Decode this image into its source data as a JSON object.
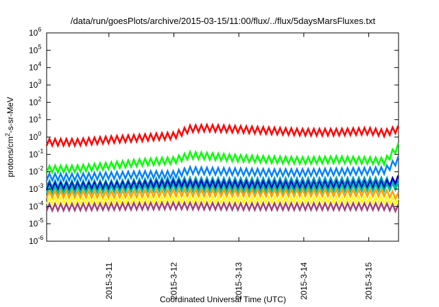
{
  "chart_data": {
    "type": "line",
    "title": "/data/run/goesPlots/archive/2015-03-15/11:00/flux/../flux/5daysMarsFluxes.txt",
    "xlabel": "Coordinated Universal Time (UTC)",
    "ylabel": {
      "prefix": "protons/cm",
      "sup": "2",
      "suffix": "-s-sr-MeV"
    },
    "y_scale": "log",
    "ylim": [
      1e-06,
      1000000.0
    ],
    "y_ticks": [
      {
        "value": 1000000.0,
        "base": "10",
        "exp": "6"
      },
      {
        "value": 100000.0,
        "base": "10",
        "exp": "5"
      },
      {
        "value": 10000.0,
        "base": "10",
        "exp": "4"
      },
      {
        "value": 1000.0,
        "base": "10",
        "exp": "3"
      },
      {
        "value": 100.0,
        "base": "10",
        "exp": "2"
      },
      {
        "value": 10.0,
        "base": "10",
        "exp": "1"
      },
      {
        "value": 1.0,
        "base": "10",
        "exp": "0"
      },
      {
        "value": 0.1,
        "base": "10",
        "exp": "-1"
      },
      {
        "value": 0.01,
        "base": "10",
        "exp": "-2"
      },
      {
        "value": 0.001,
        "base": "10",
        "exp": "-3"
      },
      {
        "value": 0.0001,
        "base": "10",
        "exp": "-4"
      },
      {
        "value": 1e-05,
        "base": "10",
        "exp": "-5"
      },
      {
        "value": 1e-06,
        "base": "10",
        "exp": "-6"
      }
    ],
    "x_scale": "time",
    "xlim": [
      "2015-03-10T01:00",
      "2015-03-15T11:00"
    ],
    "x_ticks": [
      "2015-3-11",
      "2015-3-12",
      "2015-3-13",
      "2015-3-14",
      "2015-3-15"
    ],
    "x_tick_dates": [
      "2015-03-11T00:00",
      "2015-03-12T00:00",
      "2015-03-13T00:00",
      "2015-03-14T00:00",
      "2015-03-15T00:00"
    ],
    "grid": false,
    "legend": "none",
    "series": [
      {
        "color": "#ff0000",
        "x": [
          "2015-03-10T01:00",
          "2015-03-10T12:00",
          "2015-03-11T00:00",
          "2015-03-11T12:00",
          "2015-03-12T00:00",
          "2015-03-12T06:00",
          "2015-03-12T12:00",
          "2015-03-13T00:00",
          "2015-03-13T12:00",
          "2015-03-14T00:00",
          "2015-03-14T12:00",
          "2015-03-15T00:00",
          "2015-03-15T06:00",
          "2015-03-15T11:00"
        ],
        "y": [
          0.5,
          0.5,
          0.7,
          0.9,
          1.2,
          3.0,
          3.3,
          2.8,
          2.3,
          1.9,
          1.9,
          2.2,
          1.7,
          3.0
        ]
      },
      {
        "color": "#00ff00",
        "x": [
          "2015-03-10T01:00",
          "2015-03-10T12:00",
          "2015-03-11T00:00",
          "2015-03-11T12:00",
          "2015-03-12T00:00",
          "2015-03-12T06:00",
          "2015-03-12T12:00",
          "2015-03-13T00:00",
          "2015-03-13T12:00",
          "2015-03-14T00:00",
          "2015-03-14T12:00",
          "2015-03-15T00:00",
          "2015-03-15T06:00",
          "2015-03-15T11:00"
        ],
        "y": [
          0.014,
          0.015,
          0.022,
          0.035,
          0.045,
          0.09,
          0.08,
          0.06,
          0.05,
          0.045,
          0.05,
          0.045,
          0.04,
          0.3
        ]
      },
      {
        "color": "#0080ff",
        "x": [
          "2015-03-10T01:00",
          "2015-03-10T12:00",
          "2015-03-11T00:00",
          "2015-03-11T12:00",
          "2015-03-12T00:00",
          "2015-03-12T06:00",
          "2015-03-12T12:00",
          "2015-03-13T00:00",
          "2015-03-13T12:00",
          "2015-03-14T00:00",
          "2015-03-14T12:00",
          "2015-03-15T00:00",
          "2015-03-15T06:00",
          "2015-03-15T11:00"
        ],
        "y": [
          0.005,
          0.005,
          0.006,
          0.007,
          0.007,
          0.012,
          0.011,
          0.01,
          0.009,
          0.009,
          0.01,
          0.011,
          0.012,
          0.05
        ]
      },
      {
        "color": "#00a0c0",
        "x": [
          "2015-03-10T01:00",
          "2015-03-11T00:00",
          "2015-03-12T00:00",
          "2015-03-13T00:00",
          "2015-03-14T00:00",
          "2015-03-15T00:00",
          "2015-03-15T06:00",
          "2015-03-15T11:00"
        ],
        "y": [
          0.002,
          0.002,
          0.003,
          0.0028,
          0.0028,
          0.003,
          0.003,
          0.002
        ]
      },
      {
        "color": "#0000c0",
        "x": [
          "2015-03-10T01:00",
          "2015-03-11T00:00",
          "2015-03-12T00:00",
          "2015-03-13T00:00",
          "2015-03-14T00:00",
          "2015-03-15T00:00",
          "2015-03-15T06:00",
          "2015-03-15T11:00"
        ],
        "y": [
          0.0014,
          0.0015,
          0.002,
          0.0018,
          0.0017,
          0.0018,
          0.0018,
          0.004
        ]
      },
      {
        "color": "#00c0a0",
        "x": [
          "2015-03-10T01:00",
          "2015-03-11T00:00",
          "2015-03-12T00:00",
          "2015-03-13T00:00",
          "2015-03-14T00:00",
          "2015-03-15T00:00",
          "2015-03-15T06:00",
          "2015-03-15T11:00"
        ],
        "y": [
          0.0009,
          0.001,
          0.0012,
          0.0011,
          0.0011,
          0.0012,
          0.0012,
          0.0015
        ]
      },
      {
        "color": "#ffa000",
        "x": [
          "2015-03-10T01:00",
          "2015-03-11T00:00",
          "2015-03-12T00:00",
          "2015-03-13T00:00",
          "2015-03-14T00:00",
          "2015-03-15T00:00",
          "2015-03-15T06:00",
          "2015-03-15T11:00"
        ],
        "y": [
          0.0005,
          0.0005,
          0.0006,
          0.0006,
          0.0006,
          0.0006,
          0.0006,
          0.0004
        ]
      },
      {
        "color": "#ffff00",
        "x": [
          "2015-03-10T01:00",
          "2015-03-11T00:00",
          "2015-03-12T00:00",
          "2015-03-13T00:00",
          "2015-03-14T00:00",
          "2015-03-15T00:00",
          "2015-03-15T06:00",
          "2015-03-15T11:00"
        ],
        "y": [
          0.00022,
          0.00022,
          0.00025,
          0.00024,
          0.00024,
          0.00024,
          0.00024,
          0.00018
        ]
      },
      {
        "color": "#a04080",
        "x": [
          "2015-03-10T01:00",
          "2015-03-11T00:00",
          "2015-03-12T00:00",
          "2015-03-13T00:00",
          "2015-03-14T00:00",
          "2015-03-15T00:00",
          "2015-03-15T06:00",
          "2015-03-15T11:00"
        ],
        "y": [
          9e-05,
          0.0001,
          0.00011,
          0.0001,
          0.0001,
          0.0001,
          0.0001,
          8e-05
        ]
      }
    ]
  }
}
